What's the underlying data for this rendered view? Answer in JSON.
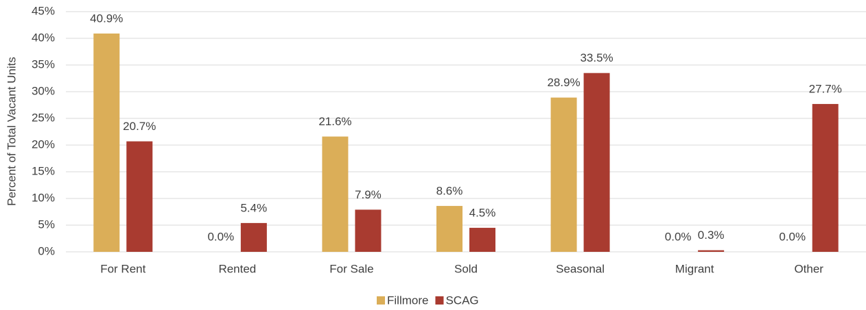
{
  "chart_data": {
    "type": "bar",
    "y_label": "Percent of Total Vacant Units",
    "categories": [
      "For Rent",
      "Rented",
      "For Sale",
      "Sold",
      "Seasonal",
      "Migrant",
      "Other"
    ],
    "series": [
      {
        "name": "Fillmore",
        "color": "#dbae58",
        "values": [
          40.9,
          0.0,
          21.6,
          8.6,
          28.9,
          0.0,
          0.0
        ],
        "value_labels": [
          "40.9%",
          "0.0%",
          "21.6%",
          "8.6%",
          "28.9%",
          "0.0%",
          "0.0%"
        ]
      },
      {
        "name": "SCAG",
        "color": "#a93b30",
        "values": [
          20.7,
          5.4,
          7.9,
          4.5,
          33.5,
          0.3,
          27.7
        ],
        "value_labels": [
          "20.7%",
          "5.4%",
          "7.9%",
          "4.5%",
          "33.5%",
          "0.3%",
          "27.7%"
        ]
      }
    ],
    "ylim": [
      0,
      45
    ],
    "yticks": [
      {
        "value": 0,
        "label": "0%"
      },
      {
        "value": 5,
        "label": "5%"
      },
      {
        "value": 10,
        "label": "10%"
      },
      {
        "value": 15,
        "label": "15%"
      },
      {
        "value": 20,
        "label": "20%"
      },
      {
        "value": 25,
        "label": "25%"
      },
      {
        "value": 30,
        "label": "30%"
      },
      {
        "value": 35,
        "label": "35%"
      },
      {
        "value": 40,
        "label": "40%"
      },
      {
        "value": 45,
        "label": "45%"
      }
    ],
    "grid": true,
    "legend": "bottom"
  }
}
